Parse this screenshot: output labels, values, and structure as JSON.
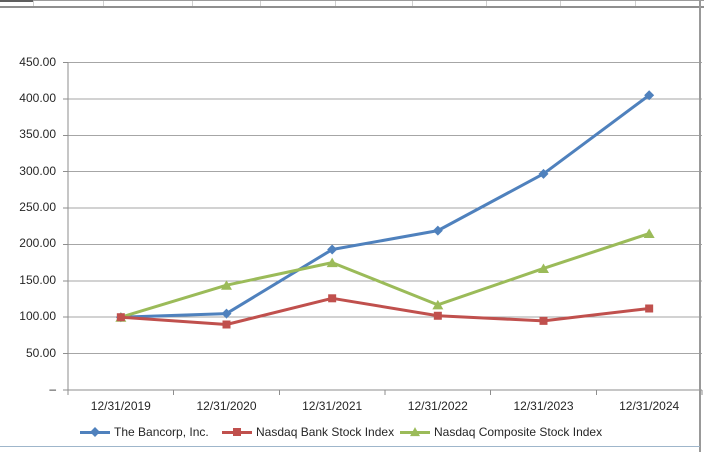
{
  "chart_data": {
    "type": "line",
    "title": "",
    "categories": [
      "12/31/2019",
      "12/31/2020",
      "12/31/2021",
      "12/31/2022",
      "12/31/2023",
      "12/31/2024"
    ],
    "series": [
      {
        "name": "The Bancorp, Inc.",
        "marker": "diamond",
        "color": "#4F81BD",
        "values": [
          100,
          105,
          193,
          219,
          297,
          405
        ]
      },
      {
        "name": "Nasdaq Bank Stock Index",
        "marker": "square",
        "color": "#C0504D",
        "values": [
          100,
          90,
          126,
          102,
          95,
          112
        ]
      },
      {
        "name": "Nasdaq Composite Stock Index",
        "marker": "triangle",
        "color": "#9BBB59",
        "values": [
          100,
          144,
          175,
          117,
          167,
          215
        ]
      }
    ],
    "y_axis": {
      "min": 0,
      "max": 450,
      "step": 50,
      "tick_labels": [
        "450.00",
        "400.00",
        "350.00",
        "300.00",
        "250.00",
        "200.00",
        "150.00",
        "100.00",
        "50.00",
        "–"
      ]
    },
    "xlabel": "",
    "ylabel": "",
    "grid": true,
    "legend_position": "bottom"
  },
  "colors": {
    "gridline": "#a6a6a6",
    "axis": "#8e8e8e",
    "text": "#262626"
  }
}
